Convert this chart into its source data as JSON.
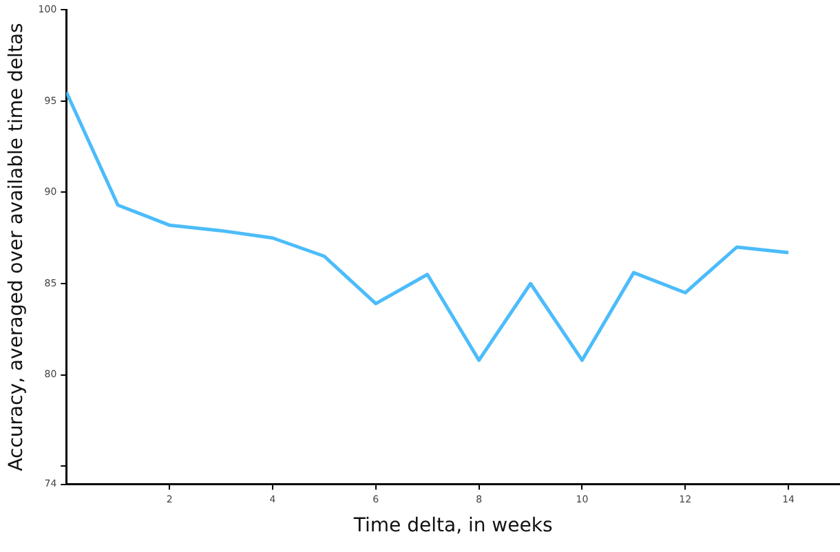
{
  "chart_data": {
    "type": "line",
    "xlabel": "Time delta, in weeks",
    "ylabel": "Accuracy, averaged over available time deltas",
    "x": [
      0,
      1,
      2,
      3,
      4,
      5,
      6,
      7,
      8,
      9,
      10,
      11,
      12,
      13,
      14
    ],
    "series": [
      {
        "color": "#4cbcfa",
        "values": [
          95.5,
          89.3,
          88.2,
          87.9,
          87.5,
          86.5,
          83.9,
          85.5,
          80.8,
          85.0,
          80.8,
          85.6,
          84.5,
          87.0,
          86.7
        ]
      }
    ],
    "xlim": [
      0,
      15
    ],
    "xticks": [
      2,
      4,
      6,
      8,
      10,
      12,
      14
    ],
    "ylim": [
      74,
      100
    ],
    "yticks": [
      74,
      {
        "value": 75,
        "label": null
      },
      80,
      85,
      90,
      95,
      100
    ],
    "grid": false,
    "legend": false,
    "marker": "none",
    "line_style": "solid"
  }
}
